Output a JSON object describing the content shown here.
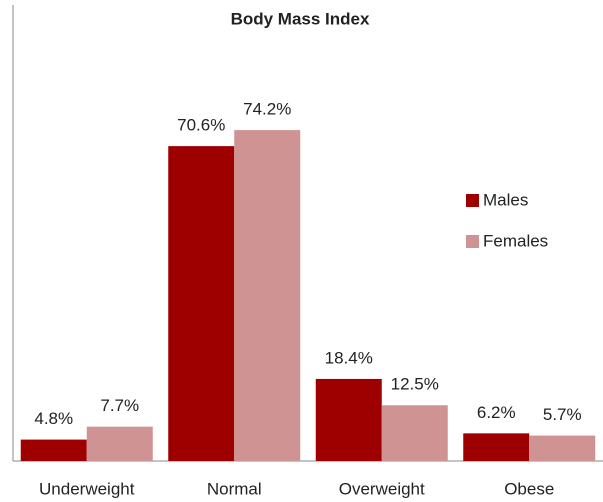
{
  "chart_data": {
    "type": "bar",
    "title": "Body Mass Index",
    "categories": [
      "Underweight",
      "Normal",
      "Overweight",
      "Obese"
    ],
    "series": [
      {
        "name": "Males",
        "color": "#9e0000",
        "values": [
          4.8,
          70.6,
          18.4,
          6.2
        ],
        "value_labels": [
          "4.8%",
          "70.6%",
          "18.4%",
          "6.2%"
        ]
      },
      {
        "name": "Females",
        "color": "#d09393",
        "values": [
          7.7,
          74.2,
          12.5,
          5.7
        ],
        "value_labels": [
          "7.7%",
          "74.2%",
          "12.5%",
          "5.7%"
        ]
      }
    ],
    "ylim": [
      0,
      100
    ],
    "legend": "right"
  }
}
